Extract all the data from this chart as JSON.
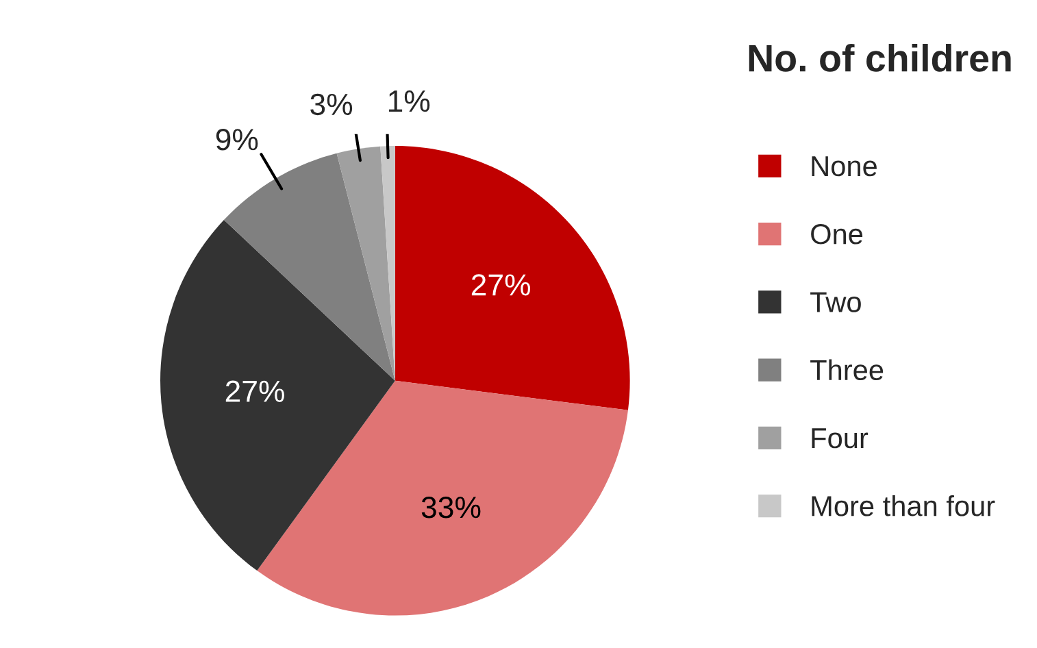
{
  "chart_data": {
    "type": "pie",
    "title": "No. of children",
    "categories": [
      "None",
      "One",
      "Two",
      "Three",
      "Four",
      "More than four"
    ],
    "values": [
      27,
      33,
      27,
      9,
      3,
      1
    ],
    "colors": [
      "#c00000",
      "#e07474",
      "#333333",
      "#808080",
      "#a0a0a0",
      "#c8c8c8"
    ],
    "value_labels": [
      "27%",
      "33%",
      "27%",
      "9%",
      "3%",
      "1%"
    ],
    "legend": "right"
  }
}
